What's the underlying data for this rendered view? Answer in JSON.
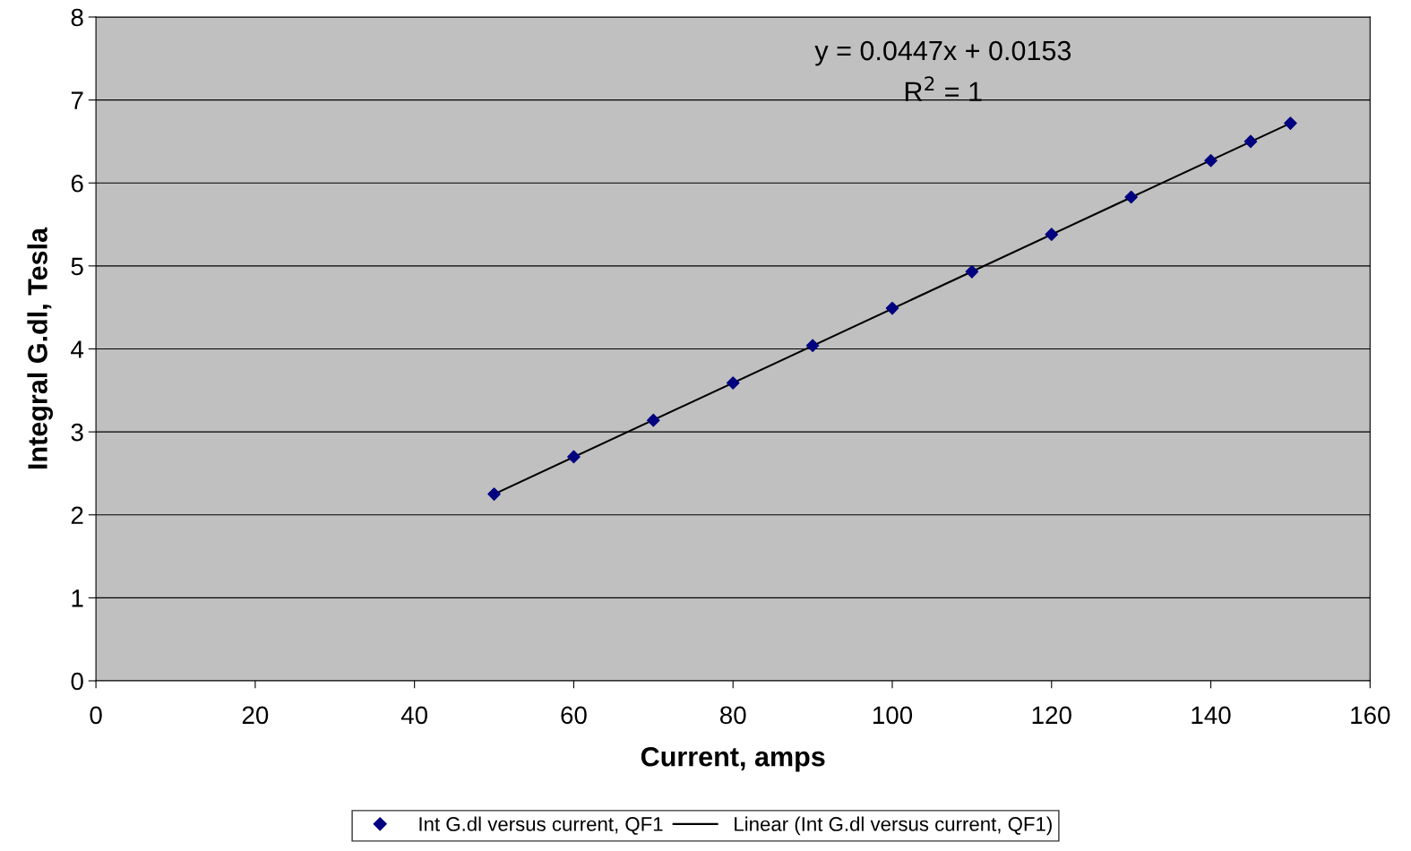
{
  "chart_data": {
    "type": "scatter",
    "xlabel": "Current, amps",
    "ylabel": "Integral G.dl, Tesla",
    "xlim": [
      0,
      160
    ],
    "xticks": [
      0,
      20,
      40,
      60,
      80,
      100,
      120,
      140,
      160
    ],
    "ylim": [
      0,
      8
    ],
    "yticks": [
      0,
      1,
      2,
      3,
      4,
      5,
      6,
      7,
      8
    ],
    "grid": "y",
    "legend": "bottom",
    "annotations": [
      "y = 0.0447x + 0.0153",
      "R$^{2}$ = 1"
    ],
    "series": [
      {
        "name": "Int G.dl versus current, QF1",
        "marker": "diamond",
        "color": "#000080",
        "x": [
          50,
          60,
          70,
          80,
          90,
          100,
          110,
          120,
          130,
          140,
          145,
          150
        ],
        "values": [
          2.25,
          2.7,
          3.14,
          3.59,
          4.04,
          4.49,
          4.93,
          5.38,
          5.83,
          6.27,
          6.5,
          6.72
        ]
      },
      {
        "name": "Linear (Int G.dl versus current, QF1)",
        "type": "line",
        "marker": "none",
        "color": "#000000",
        "line_style": "solid",
        "x": [
          50,
          150
        ],
        "values": [
          2.25,
          6.72
        ]
      }
    ]
  }
}
